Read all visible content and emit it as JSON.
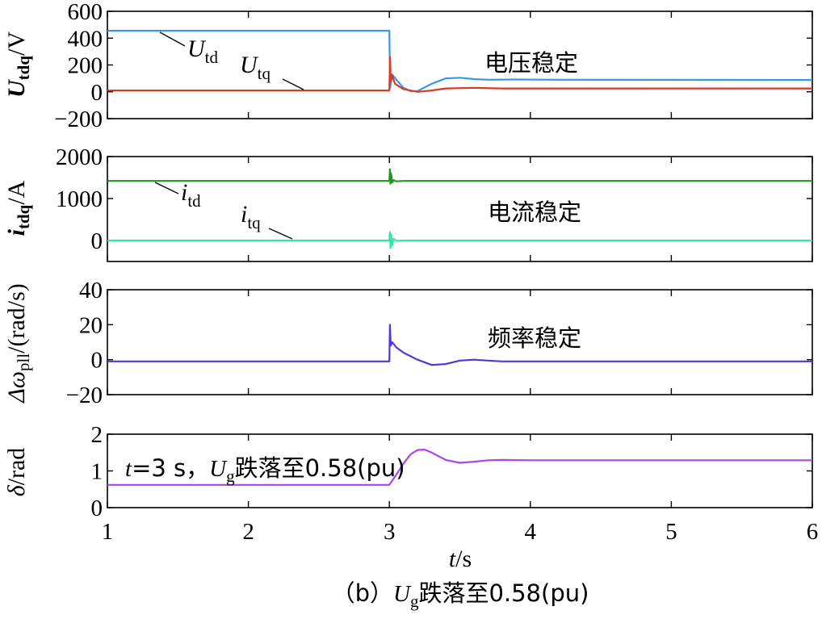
{
  "caption": {
    "prefix": "（b）",
    "var": "U",
    "sub": "g",
    "rest": "跌落至0.58(pu)"
  },
  "colors": {
    "blue": "#3399e6",
    "red": "#d93a22",
    "darkgreen": "#1a9a1a",
    "cyan": "#33e6a6",
    "purple1": "#5533dd",
    "purple2": "#aa44ee"
  },
  "chart_data": [
    {
      "id": "voltage",
      "type": "line",
      "ylabel": {
        "main": "U",
        "sub": "tdq",
        "unit": "/V"
      },
      "xlim": [
        1,
        6
      ],
      "ylim": [
        -200,
        600
      ],
      "yticks": [
        -200,
        0,
        200,
        400,
        600
      ],
      "annotation": "电压稳定",
      "series": [
        {
          "name": "U_td",
          "label_main": "U",
          "label_sub": "td",
          "color": "#3399e6",
          "points": [
            [
              1,
              455
            ],
            [
              2.99,
              455
            ],
            [
              3.0,
              455
            ],
            [
              3.005,
              30
            ],
            [
              3.02,
              130
            ],
            [
              3.05,
              90
            ],
            [
              3.1,
              30
            ],
            [
              3.15,
              5
            ],
            [
              3.2,
              5
            ],
            [
              3.3,
              60
            ],
            [
              3.4,
              100
            ],
            [
              3.5,
              105
            ],
            [
              3.6,
              95
            ],
            [
              3.7,
              90
            ],
            [
              3.9,
              92
            ],
            [
              4.2,
              90
            ],
            [
              6,
              88
            ]
          ]
        },
        {
          "name": "U_tq",
          "label_main": "U",
          "label_sub": "tq",
          "color": "#d93a22",
          "points": [
            [
              1,
              10
            ],
            [
              2.99,
              10
            ],
            [
              3.0,
              10
            ],
            [
              3.005,
              260
            ],
            [
              3.01,
              80
            ],
            [
              3.02,
              120
            ],
            [
              3.04,
              60
            ],
            [
              3.1,
              20
            ],
            [
              3.2,
              0
            ],
            [
              3.3,
              10
            ],
            [
              3.4,
              25
            ],
            [
              3.6,
              30
            ],
            [
              3.8,
              25
            ],
            [
              4.2,
              25
            ],
            [
              6,
              25
            ]
          ]
        }
      ]
    },
    {
      "id": "current",
      "type": "line",
      "ylabel": {
        "main": "i",
        "sub": "tdq",
        "unit": "/A"
      },
      "xlim": [
        1,
        6
      ],
      "ylim": [
        -500,
        2000
      ],
      "yticks": [
        0,
        1000,
        2000
      ],
      "annotation": "电流稳定",
      "series": [
        {
          "name": "i_td",
          "label_main": "i",
          "label_sub": "td",
          "color": "#1a9a1a",
          "points": [
            [
              1,
              1420
            ],
            [
              2.99,
              1420
            ],
            [
              3.0,
              1420
            ],
            [
              3.004,
              1700
            ],
            [
              3.008,
              1350
            ],
            [
              3.012,
              1600
            ],
            [
              3.02,
              1380
            ],
            [
              3.03,
              1440
            ],
            [
              3.05,
              1410
            ],
            [
              3.1,
              1420
            ],
            [
              6,
              1420
            ]
          ]
        },
        {
          "name": "i_tq",
          "label_main": "i",
          "label_sub": "tq",
          "color": "#33e6a6",
          "points": [
            [
              1,
              0
            ],
            [
              2.99,
              0
            ],
            [
              3.0,
              0
            ],
            [
              3.004,
              200
            ],
            [
              3.008,
              -180
            ],
            [
              3.012,
              150
            ],
            [
              3.02,
              -120
            ],
            [
              3.03,
              40
            ],
            [
              3.05,
              -10
            ],
            [
              3.1,
              0
            ],
            [
              6,
              0
            ]
          ]
        }
      ]
    },
    {
      "id": "frequency",
      "type": "line",
      "ylabel": {
        "pre": "Δω",
        "sub": "pll",
        "unit": "/(rad/s)"
      },
      "xlim": [
        1,
        6
      ],
      "ylim": [
        -20,
        40
      ],
      "yticks": [
        -20,
        0,
        20,
        40
      ],
      "annotation": "频率稳定",
      "series": [
        {
          "name": "Δω_pll",
          "color": "#5533dd",
          "points": [
            [
              1,
              -1
            ],
            [
              2.99,
              -1
            ],
            [
              3.0,
              -1
            ],
            [
              3.004,
              20
            ],
            [
              3.01,
              8
            ],
            [
              3.02,
              10
            ],
            [
              3.05,
              7
            ],
            [
              3.1,
              4
            ],
            [
              3.2,
              0
            ],
            [
              3.3,
              -3
            ],
            [
              3.4,
              -2.5
            ],
            [
              3.5,
              -0.5
            ],
            [
              3.6,
              0
            ],
            [
              3.7,
              -0.5
            ],
            [
              3.8,
              -1
            ],
            [
              4.0,
              -1
            ],
            [
              6,
              -1
            ]
          ]
        }
      ]
    },
    {
      "id": "angle",
      "type": "line",
      "ylabel": {
        "pre": "δ",
        "unit": "/rad"
      },
      "xlim": [
        1,
        6
      ],
      "ylim": [
        0,
        2
      ],
      "yticks": [
        0,
        1,
        2
      ],
      "xticks": [
        1,
        2,
        3,
        4,
        5,
        6
      ],
      "xlabel": {
        "main": "t",
        "unit": "/s"
      },
      "annotation": {
        "t": "t",
        "rest1": "=3 s，",
        "U": "U",
        "sub": "g",
        "rest2": "跌落至0.58(pu)"
      },
      "series": [
        {
          "name": "δ",
          "color": "#aa44ee",
          "points": [
            [
              1,
              0.62
            ],
            [
              2.99,
              0.62
            ],
            [
              3.0,
              0.62
            ],
            [
              3.05,
              0.9
            ],
            [
              3.1,
              1.2
            ],
            [
              3.15,
              1.45
            ],
            [
              3.2,
              1.57
            ],
            [
              3.25,
              1.58
            ],
            [
              3.3,
              1.5
            ],
            [
              3.4,
              1.3
            ],
            [
              3.5,
              1.22
            ],
            [
              3.6,
              1.25
            ],
            [
              3.7,
              1.29
            ],
            [
              3.8,
              1.3
            ],
            [
              4.0,
              1.29
            ],
            [
              6,
              1.29
            ]
          ]
        }
      ]
    }
  ]
}
